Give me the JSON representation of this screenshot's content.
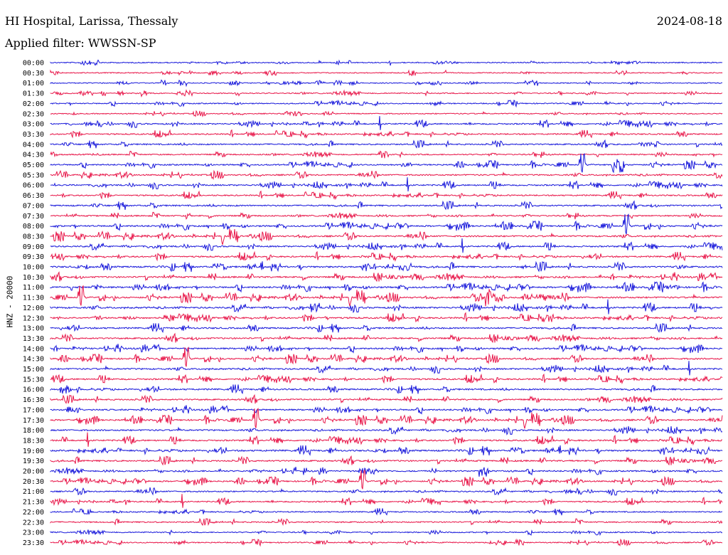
{
  "header": {
    "station": "HI Hospital, Larissa, Thessaly",
    "date": "2024-08-18",
    "filter": "Applied filter: WWSSN-SP"
  },
  "chart_data": {
    "type": "line",
    "title": "HI Hospital, Larissa, Thessaly",
    "ylabel": "HNZ - 20000",
    "row_labels": [
      "00:00",
      "00:30",
      "01:00",
      "01:30",
      "02:00",
      "02:30",
      "03:00",
      "03:30",
      "04:00",
      "04:30",
      "05:00",
      "05:30",
      "06:00",
      "06:30",
      "07:00",
      "07:30",
      "08:00",
      "08:30",
      "09:00",
      "09:30",
      "10:00",
      "10:30",
      "11:00",
      "11:30",
      "12:00",
      "12:30",
      "13:00",
      "13:30",
      "14:00",
      "14:30",
      "15:00",
      "15:30",
      "16:00",
      "16:30",
      "17:00",
      "17:30",
      "18:00",
      "18:30",
      "19:00",
      "19:30",
      "20:00",
      "20:30",
      "21:00",
      "21:30",
      "22:00",
      "22:30",
      "23:00",
      "23:30"
    ],
    "series_colors": [
      "#1a1adb",
      "#e8174a"
    ],
    "activity_level": [
      0.15,
      0.1,
      0.12,
      0.18,
      0.2,
      0.1,
      0.45,
      0.4,
      0.45,
      0.35,
      0.45,
      0.45,
      0.5,
      0.4,
      0.55,
      0.4,
      0.65,
      0.6,
      0.55,
      0.55,
      0.75,
      0.65,
      0.75,
      0.65,
      0.7,
      0.6,
      0.6,
      0.6,
      0.6,
      0.55,
      0.6,
      0.55,
      0.6,
      0.55,
      0.6,
      0.6,
      0.6,
      0.55,
      0.7,
      0.6,
      0.5,
      0.5,
      0.45,
      0.4,
      0.3,
      0.35,
      0.2,
      0.2
    ]
  }
}
